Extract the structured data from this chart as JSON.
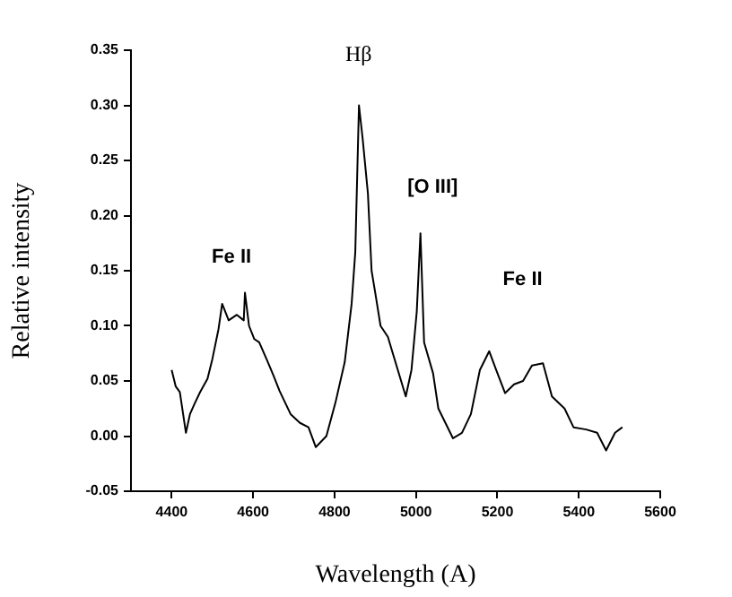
{
  "chart_data": {
    "type": "line",
    "xlabel": "Wavelength (A)",
    "ylabel": "Relative intensity",
    "x": [
      4400,
      4410,
      4420,
      4435,
      4445,
      4457,
      4470,
      4488,
      4500,
      4515,
      4524,
      4540,
      4560,
      4577,
      4580,
      4590,
      4603,
      4615,
      4634,
      4650,
      4665,
      4692,
      4715,
      4736,
      4754,
      4780,
      4802,
      4825,
      4842,
      4851,
      4860,
      4869,
      4882,
      4891,
      4900,
      4913,
      4931,
      4944,
      4975,
      4989,
      5002,
      5011,
      5020,
      5042,
      5055,
      5091,
      5113,
      5135,
      5157,
      5180,
      5197,
      5219,
      5241,
      5263,
      5285,
      5312,
      5334,
      5365,
      5387,
      5418,
      5445,
      5467,
      5489,
      5507
    ],
    "series": [
      {
        "color": "#000000",
        "values": [
          0.06,
          0.045,
          0.04,
          0.003,
          0.02,
          0.03,
          0.04,
          0.052,
          0.07,
          0.097,
          0.12,
          0.105,
          0.11,
          0.105,
          0.13,
          0.1,
          0.088,
          0.085,
          0.069,
          0.055,
          0.041,
          0.02,
          0.012,
          0.008,
          -0.01,
          0.0,
          0.03,
          0.067,
          0.12,
          0.167,
          0.3,
          0.27,
          0.22,
          0.15,
          0.13,
          0.1,
          0.09,
          0.074,
          0.036,
          0.06,
          0.113,
          0.184,
          0.085,
          0.057,
          0.025,
          -0.002,
          0.003,
          0.02,
          0.06,
          0.077,
          0.06,
          0.039,
          0.047,
          0.05,
          0.064,
          0.066,
          0.036,
          0.025,
          0.008,
          0.006,
          0.003,
          -0.013,
          0.003,
          0.008
        ]
      }
    ],
    "xlim": [
      4300,
      5600
    ],
    "xticks": [
      4400,
      4600,
      4800,
      5000,
      5200,
      5400,
      5600
    ],
    "ylim": [
      -0.05,
      0.35
    ],
    "yticks": [
      -0.05,
      {
        "value": 0,
        "label": "0.00"
      },
      0.05,
      {
        "value": 0.1,
        "label": "0.10"
      },
      0.15,
      {
        "value": 0.2,
        "label": "0.20"
      },
      0.25,
      {
        "value": 0.3,
        "label": "0.30"
      },
      0.35
    ],
    "marker": "none",
    "line_style": "solid",
    "grid": false,
    "legend": false,
    "annotations": [
      "Hβ",
      "[O III]",
      "Fe II",
      "Fe II"
    ]
  }
}
